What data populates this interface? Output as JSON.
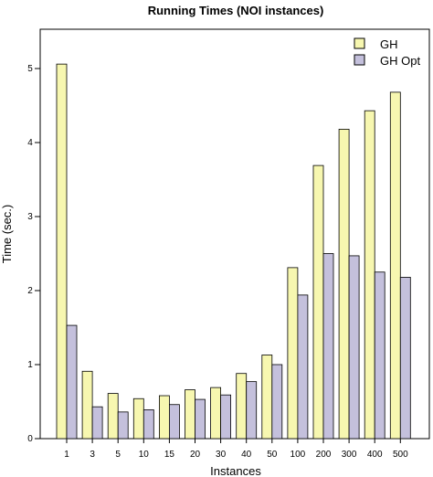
{
  "chart_data": {
    "type": "bar",
    "title": "Running Times (NOI instances)",
    "xlabel": "Instances",
    "ylabel": "Time (sec.)",
    "categories": [
      "1",
      "3",
      "5",
      "10",
      "15",
      "20",
      "30",
      "40",
      "50",
      "100",
      "200",
      "300",
      "400",
      "500"
    ],
    "series": [
      {
        "name": "GH",
        "color": "#f7f7b0",
        "values": [
          5.06,
          0.91,
          0.61,
          0.54,
          0.58,
          0.66,
          0.69,
          0.88,
          1.13,
          2.31,
          3.69,
          4.18,
          4.43,
          4.68
        ]
      },
      {
        "name": "GH Opt",
        "color": "#c4c0dc",
        "values": [
          1.53,
          0.43,
          0.36,
          0.39,
          0.46,
          0.53,
          0.59,
          0.77,
          1.0,
          1.94,
          2.5,
          2.47,
          2.25,
          2.18
        ]
      }
    ],
    "ylim": [
      0,
      5.4
    ],
    "yticks": [
      0,
      1,
      2,
      3,
      4,
      5
    ],
    "legend": "top-right",
    "grid": false
  }
}
